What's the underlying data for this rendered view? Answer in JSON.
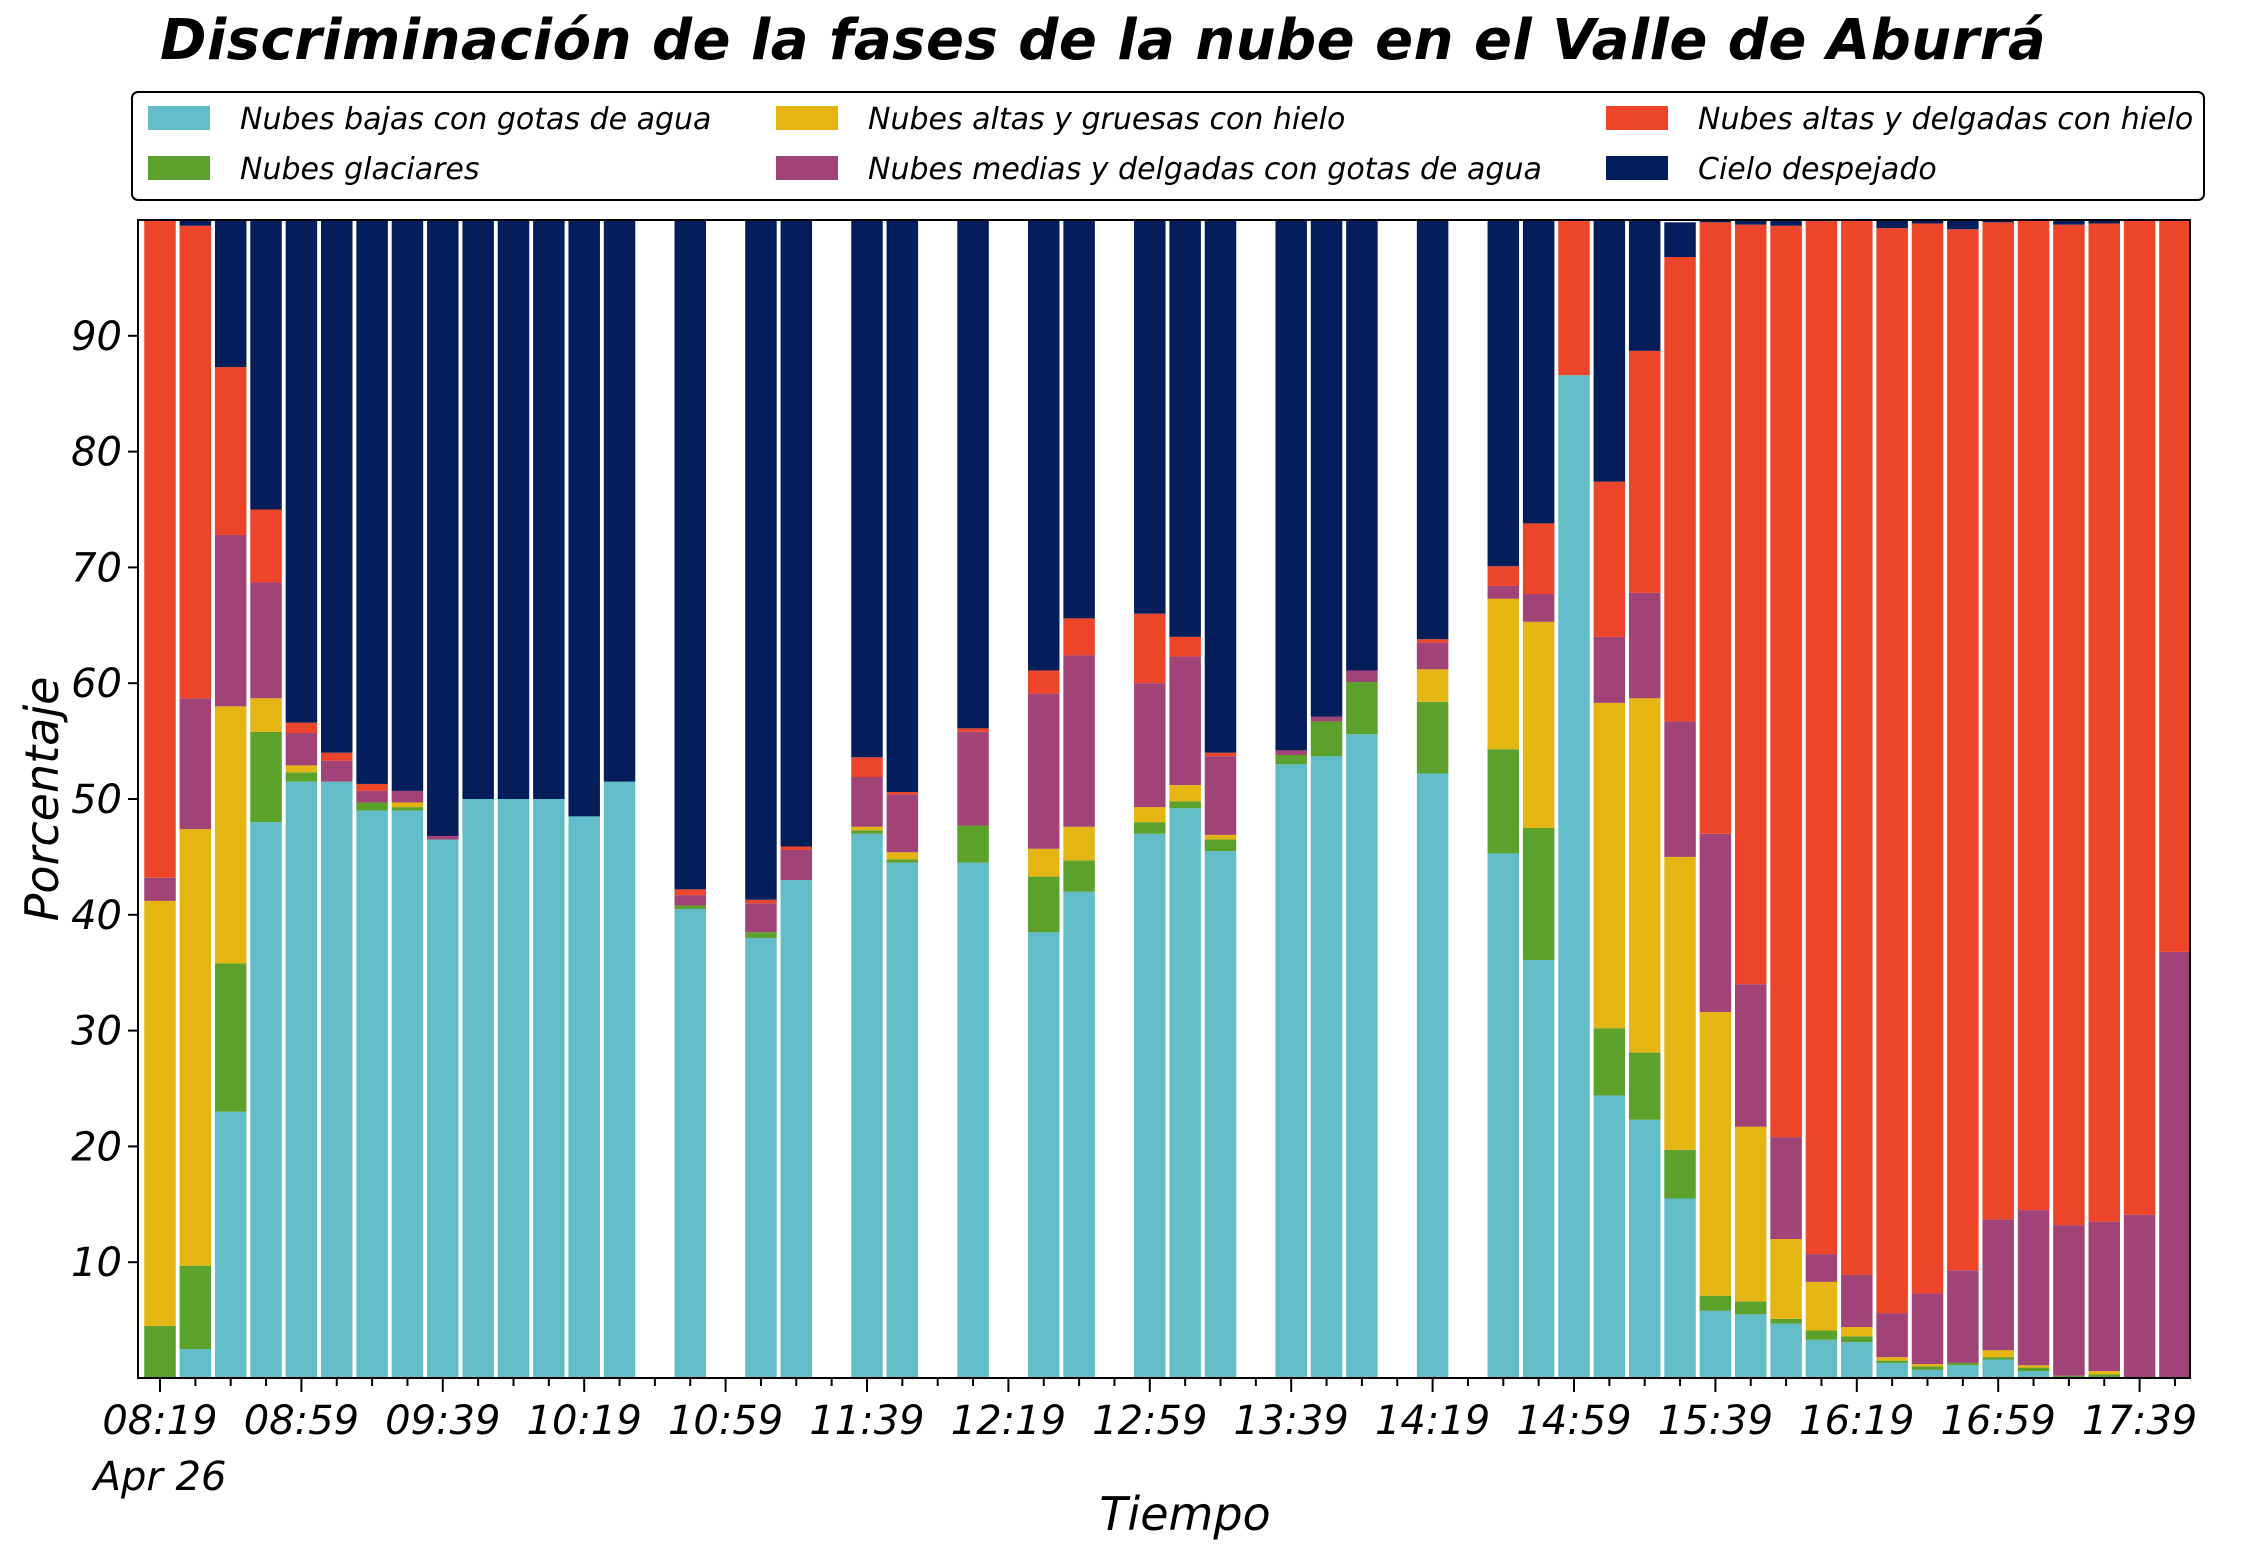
{
  "chart_data": {
    "type": "bar",
    "stacked": true,
    "title": "Discriminación de la fases de la nube en el Valle de Aburrá",
    "xlabel": "Tiempo",
    "ylabel": "Porcentaje",
    "ylim": [
      0,
      100
    ],
    "yticks": [
      10,
      20,
      30,
      40,
      50,
      60,
      70,
      80,
      90
    ],
    "x_start_minutes": 499,
    "x_step_minutes": 10,
    "xtick_labels": [
      "08:19",
      "08:59",
      "09:39",
      "10:19",
      "10:59",
      "11:39",
      "12:19",
      "12:59",
      "13:39",
      "14:19",
      "14:59",
      "15:39",
      "16:19",
      "16:59",
      "17:39"
    ],
    "xtick_sublabel": "Apr 26",
    "grid": false,
    "legend_position": "top",
    "slot_count": 58,
    "present": [
      1,
      1,
      1,
      1,
      1,
      1,
      1,
      1,
      1,
      1,
      1,
      1,
      1,
      1,
      0,
      1,
      0,
      1,
      1,
      0,
      1,
      1,
      0,
      1,
      0,
      1,
      1,
      0,
      1,
      1,
      1,
      0,
      1,
      1,
      1,
      0,
      1,
      0,
      1,
      1,
      1,
      1,
      1,
      1,
      1,
      1,
      1,
      1,
      1,
      1,
      1,
      1,
      1,
      1,
      1,
      1,
      1,
      1
    ],
    "series": [
      {
        "name": "Nubes bajas con gotas de agua",
        "color": "#63BDC8",
        "values": [
          0,
          2.5,
          23,
          48,
          51.5,
          51.5,
          49,
          49,
          46.5,
          50,
          50,
          50,
          48.5,
          51.5,
          0,
          40.5,
          0,
          38,
          43,
          0,
          47,
          44.5,
          0,
          44.5,
          0,
          38.5,
          42,
          0,
          47,
          49.2,
          45.5,
          0,
          53,
          53.7,
          55.6,
          0,
          52.2,
          0,
          45.3,
          36.1,
          86.6,
          24.4,
          22.3,
          15.5,
          5.8,
          5.5,
          4.7,
          3.3,
          3.1,
          1.3,
          0.7,
          1.1,
          1.6,
          0.6,
          0,
          0,
          0,
          0
        ]
      },
      {
        "name": "Nubes glaciares",
        "color": "#5BA12B",
        "values": [
          4.5,
          7.2,
          12.8,
          7.8,
          0.8,
          0,
          0.7,
          0.3,
          0,
          0,
          0,
          0,
          0,
          0,
          0,
          0.3,
          0,
          0.5,
          0,
          0,
          0.3,
          0.3,
          0,
          3.2,
          0,
          4.8,
          2.7,
          0,
          1,
          0.6,
          1,
          0,
          0.8,
          3,
          4.5,
          0,
          6.2,
          0,
          9,
          11.4,
          0,
          5.8,
          5.8,
          4.2,
          1.3,
          1.1,
          0.4,
          0.8,
          0.5,
          0.2,
          0.3,
          0.2,
          0.2,
          0.3,
          0.2,
          0.3,
          0,
          0
        ]
      },
      {
        "name": "Nubes altas y gruesas con hielo",
        "color": "#E5B513",
        "values": [
          36.7,
          37.7,
          22.2,
          2.9,
          0.6,
          0,
          0,
          0.4,
          0,
          0,
          0,
          0,
          0,
          0,
          0,
          0,
          0,
          0,
          0,
          0,
          0.3,
          0.6,
          0,
          0,
          0,
          2.4,
          2.9,
          0,
          1.3,
          1.4,
          0.4,
          0,
          0,
          0,
          0,
          0,
          2.8,
          0,
          13,
          17.8,
          0,
          28.1,
          30.6,
          25.3,
          24.5,
          15.1,
          6.9,
          4.2,
          0.8,
          0.3,
          0.2,
          0,
          0.6,
          0.2,
          0,
          0.3,
          0,
          0
        ]
      },
      {
        "name": "Nubes medias y delgadas con gotas de agua",
        "color": "#A24377",
        "values": [
          2,
          11.3,
          14.8,
          10,
          2.8,
          1.8,
          1,
          1,
          0.3,
          0,
          0,
          0,
          0,
          0,
          0,
          0.9,
          0,
          2.5,
          2.6,
          0,
          4.3,
          5,
          0,
          8.1,
          0,
          13.4,
          14.8,
          0,
          10.7,
          11.1,
          6.8,
          0,
          0.4,
          0.4,
          1,
          0,
          2.3,
          0,
          1.1,
          2.4,
          0,
          5.7,
          9.1,
          11.7,
          15.4,
          12.3,
          8.8,
          2.4,
          4.5,
          3.8,
          6.1,
          8,
          11.3,
          13.4,
          13,
          12.9,
          14.1,
          36.8
        ]
      },
      {
        "name": "Nubes altas y delgadas con hielo",
        "color": "#EC4529",
        "values": [
          56.8,
          40.8,
          14.5,
          6.3,
          0.9,
          0.7,
          0.6,
          0,
          0,
          0,
          0,
          0,
          0,
          0,
          0,
          0.5,
          0,
          0.3,
          0.3,
          0,
          1.7,
          0.2,
          0,
          0.3,
          0,
          2,
          3.2,
          0,
          6,
          1.7,
          0.3,
          0,
          0,
          0,
          0,
          0,
          0.3,
          0,
          1.7,
          6.1,
          13.4,
          13.4,
          20.9,
          40.1,
          52.8,
          65.6,
          78.7,
          89.2,
          91.1,
          93.7,
          92.4,
          89.9,
          86.1,
          85.7,
          86.4,
          86.2,
          85.9,
          63.2
        ]
      },
      {
        "name": "Cielo despejado",
        "color": "#041E5C",
        "values": [
          0,
          0.5,
          12.7,
          25,
          43.4,
          46,
          48.7,
          49.3,
          53.2,
          50,
          50,
          50,
          51.5,
          48.5,
          0,
          57.8,
          0,
          58.7,
          54.1,
          0,
          46.4,
          49.4,
          0,
          43.9,
          0,
          38.9,
          34.4,
          0,
          34,
          36,
          46,
          0,
          45.8,
          42.9,
          38.9,
          0,
          36.4,
          0,
          29.9,
          26.2,
          0,
          22.6,
          11.3,
          3,
          0.2,
          0.4,
          0.5,
          0.1,
          0,
          0.7,
          0.3,
          0.8,
          0.2,
          0.2,
          0.4,
          0.3,
          0,
          0
        ]
      }
    ]
  }
}
